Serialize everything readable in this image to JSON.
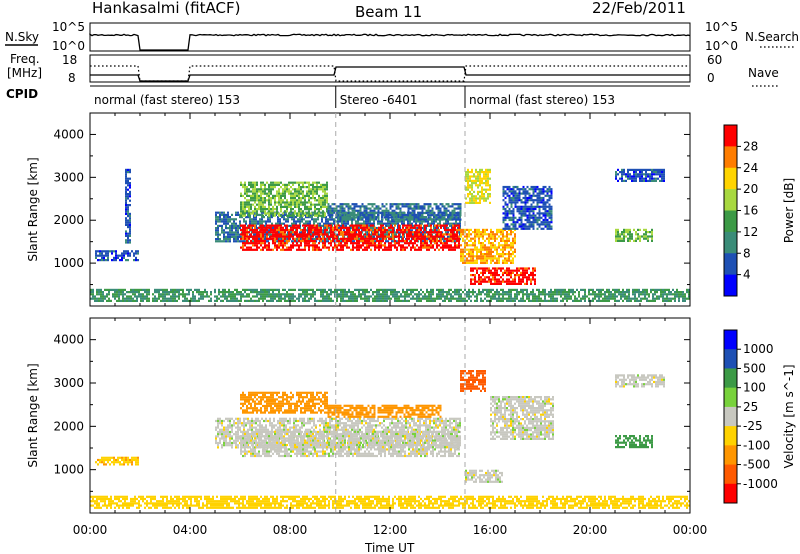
{
  "header": {
    "title": "Hankasalmi (fitACF)",
    "beam": "Beam 11",
    "date": "22/Feb/2011"
  },
  "status_panel": {
    "nsky_label": "N.Sky",
    "nsky_ticks": [
      "10^5",
      "10^0"
    ],
    "nsearch_label": "N.Search",
    "freq_label_1": "Freq.",
    "freq_label_2": "[MHz]",
    "freq_ticks": [
      "18",
      "8"
    ],
    "nave_ticks": [
      "60",
      "0"
    ],
    "nave_label": "Nave",
    "cpid_label": "CPID",
    "cpid_segments": [
      {
        "label": "normal (fast stereo) 153",
        "start_h": 0,
        "end_h": 9.83
      },
      {
        "label": "Stereo -6401",
        "start_h": 9.83,
        "end_h": 15.0
      },
      {
        "label": "normal (fast stereo) 153",
        "start_h": 15.0,
        "end_h": 24
      }
    ],
    "data_gaps_h": [
      [
        2.0,
        4.0
      ]
    ],
    "stereo_interval_h": [
      9.83,
      15.0
    ]
  },
  "chart_data": [
    {
      "type": "heatmap",
      "ylabel": "Slant Range [km]",
      "ylim": [
        0,
        4500
      ],
      "yticks": [
        1000,
        2000,
        3000,
        4000
      ],
      "xlim": [
        0,
        24
      ],
      "colorbar": {
        "label": "Power [dB]",
        "ticks": [
          "28",
          "24",
          "20",
          "16",
          "12",
          "8",
          "4"
        ],
        "colors": [
          "#ff0000",
          "#ff7d00",
          "#ffd400",
          "#a8d840",
          "#3c9a46",
          "#3a8c78",
          "#1e50b4",
          "#0000ff"
        ]
      },
      "regions": [
        {
          "t0": 0.2,
          "t1": 1.9,
          "r0": 1050,
          "r1": 1300,
          "val": 4
        },
        {
          "t0": 1.4,
          "t1": 1.6,
          "r0": 1500,
          "r1": 3200,
          "val": 4
        },
        {
          "t0": 5.0,
          "t1": 14.8,
          "r0": 1500,
          "r1": 2200,
          "val": 6
        },
        {
          "t0": 6.0,
          "t1": 14.8,
          "r0": 1300,
          "r1": 1900,
          "val": 28
        },
        {
          "t0": 6.0,
          "t1": 9.5,
          "r0": 2100,
          "r1": 2900,
          "val": 14
        },
        {
          "t0": 9.5,
          "t1": 14.8,
          "r0": 2000,
          "r1": 2400,
          "val": 6
        },
        {
          "t0": 14.8,
          "t1": 17.0,
          "r0": 1000,
          "r1": 1800,
          "val": 22
        },
        {
          "t0": 15.2,
          "t1": 17.8,
          "r0": 500,
          "r1": 900,
          "val": 28
        },
        {
          "t0": 15.0,
          "t1": 16.0,
          "r0": 2400,
          "r1": 3200,
          "val": 18
        },
        {
          "t0": 16.5,
          "t1": 18.5,
          "r0": 1800,
          "r1": 2800,
          "val": 4
        },
        {
          "t0": 21.0,
          "t1": 22.5,
          "r0": 1500,
          "r1": 1800,
          "val": 14
        },
        {
          "t0": 21.0,
          "t1": 23.0,
          "r0": 2900,
          "r1": 3200,
          "val": 4
        },
        {
          "t0": 0.0,
          "t1": 24.0,
          "r0": 100,
          "r1": 400,
          "val": 10
        }
      ]
    },
    {
      "type": "heatmap",
      "ylabel": "Slant Range [km]",
      "ylim": [
        0,
        4500
      ],
      "yticks": [
        1000,
        2000,
        3000,
        4000
      ],
      "xlim": [
        0,
        24
      ],
      "xlabel": "Time UT",
      "xtick_labels": [
        "00:00",
        "04:00",
        "08:00",
        "12:00",
        "16:00",
        "20:00",
        "00:00"
      ],
      "xtick_hours": [
        0,
        4,
        8,
        12,
        16,
        20,
        24
      ],
      "colorbar": {
        "label": "Velocity [m s^-1]",
        "ticks": [
          "1000",
          "500",
          "100",
          "25",
          "-25",
          "-100",
          "-500",
          "-1000"
        ],
        "colors": [
          "#0000ff",
          "#1e50b4",
          "#3c9a46",
          "#78d23c",
          "#c8c8c0",
          "#ffd200",
          "#ff9600",
          "#ff5a00",
          "#ff0000"
        ]
      },
      "regions": [
        {
          "t0": 5.0,
          "t1": 14.8,
          "r0": 1500,
          "r1": 2200,
          "val": 0
        },
        {
          "t0": 6.0,
          "t1": 14.8,
          "r0": 1300,
          "r1": 1900,
          "val": 0
        },
        {
          "t0": 6.0,
          "t1": 9.5,
          "r0": 2300,
          "r1": 2800,
          "val": -300
        },
        {
          "t0": 9.5,
          "t1": 14.0,
          "r0": 2200,
          "r1": 2500,
          "val": -300
        },
        {
          "t0": 14.8,
          "t1": 15.8,
          "r0": 2800,
          "r1": 3300,
          "val": -600
        },
        {
          "t0": 15.0,
          "t1": 16.5,
          "r0": 700,
          "r1": 1000,
          "val": 0
        },
        {
          "t0": 16.0,
          "t1": 18.5,
          "r0": 1700,
          "r1": 2700,
          "val": 0
        },
        {
          "t0": 0.2,
          "t1": 1.9,
          "r0": 1100,
          "r1": 1300,
          "val": -80
        },
        {
          "t0": 21.0,
          "t1": 22.5,
          "r0": 1500,
          "r1": 1800,
          "val": 300
        },
        {
          "t0": 21.0,
          "t1": 23.0,
          "r0": 2900,
          "r1": 3200,
          "val": 0
        },
        {
          "t0": 0.0,
          "t1": 24.0,
          "r0": 100,
          "r1": 400,
          "val": -60
        }
      ]
    }
  ]
}
